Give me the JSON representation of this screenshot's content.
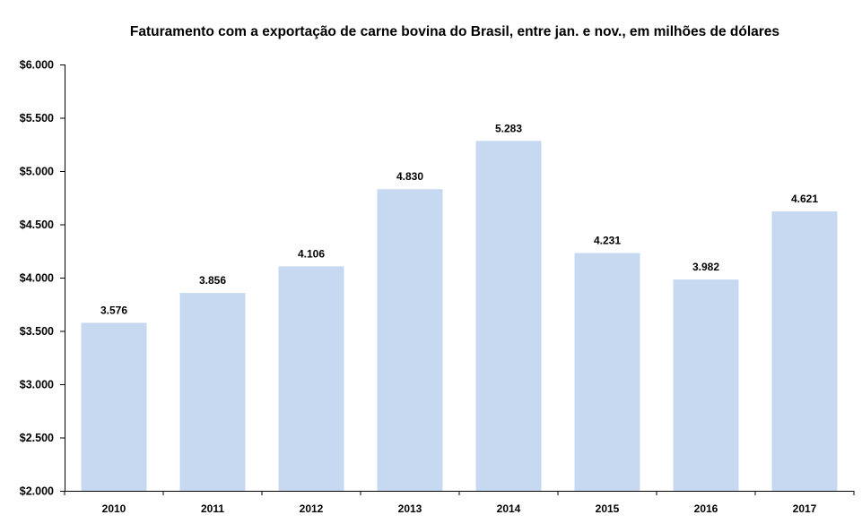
{
  "chart_data": {
    "type": "bar",
    "title": "Faturamento com a  exportação de carne bovina do  Brasil, entre jan. e nov., em milhões de dólares",
    "xlabel": "",
    "ylabel": "",
    "categories": [
      "2010",
      "2011",
      "2012",
      "2013",
      "2014",
      "2015",
      "2016",
      "2017"
    ],
    "values": [
      3576,
      3856,
      4106,
      4830,
      5283,
      4231,
      3982,
      4621
    ],
    "data_labels": [
      "3.576",
      "3.856",
      "4.106",
      "4.830",
      "5.283",
      "4.231",
      "3.982",
      "4.621"
    ],
    "ylim": [
      2000,
      6000
    ],
    "yticks": [
      2000,
      2500,
      3000,
      3500,
      4000,
      4500,
      5000,
      5500,
      6000
    ],
    "ytick_labels": [
      "$2.000",
      "$2.500",
      "$3.000",
      "$3.500",
      "$4.000",
      "$4.500",
      "$5.000",
      "$5.500",
      "$6.000"
    ],
    "grid": false,
    "legend": "none",
    "bar_color": "#c6d9f0"
  }
}
